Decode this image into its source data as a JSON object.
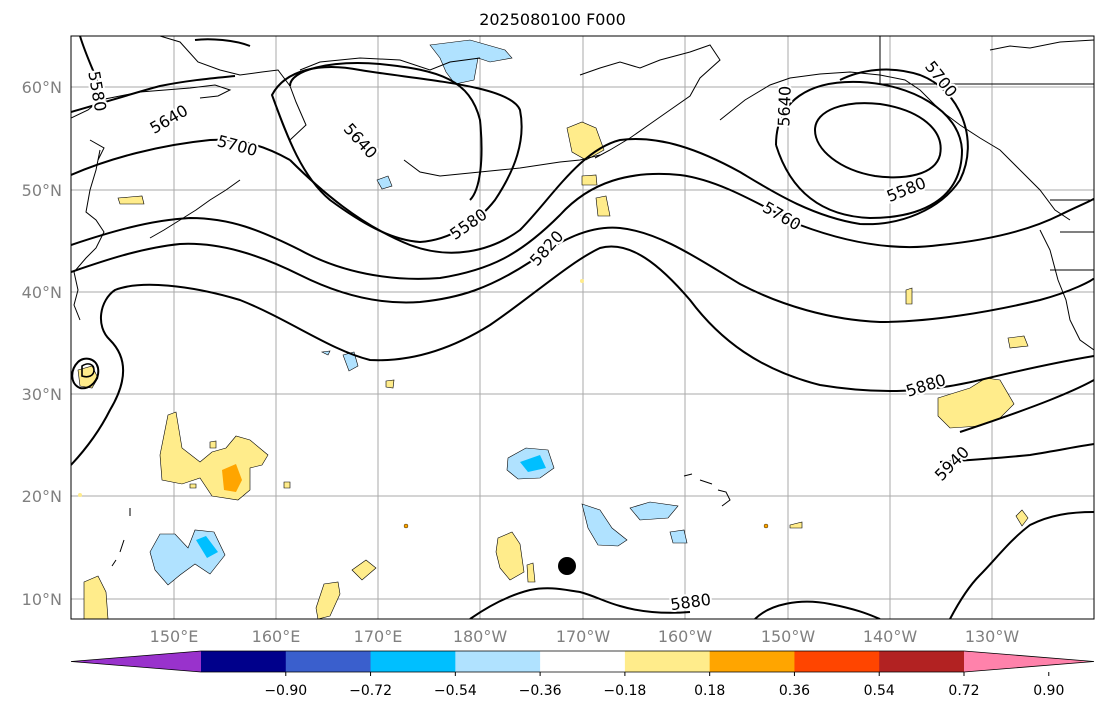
{
  "title": "2025080100 F000",
  "lat_labels": [
    "60°N",
    "50°N",
    "40°N",
    "30°N",
    "20°N",
    "10°N"
  ],
  "lon_labels": [
    "150°E",
    "160°E",
    "170°E",
    "180°W",
    "170°W",
    "160°W",
    "150°W",
    "140°W",
    "130°W"
  ],
  "contour_labels": [
    "5580",
    "5640",
    "5700",
    "5640",
    "5580",
    "5820",
    "5640",
    "5700",
    "5580",
    "5760",
    "5880",
    "5940",
    "5880"
  ],
  "colorbar": {
    "ticks": [
      "−0.90",
      "−0.72",
      "−0.54",
      "−0.36",
      "−0.18",
      "0.18",
      "0.36",
      "0.54",
      "0.72",
      "0.90"
    ],
    "colors": [
      "#9932cc",
      "#00008b",
      "#3a5fcd",
      "#00bfff",
      "#b0e2ff",
      "#ffffff",
      "#ffec8b",
      "#ffa500",
      "#ff4500",
      "#b22222",
      "#ff82ab"
    ]
  },
  "colors": {
    "grid": "#aaaaaa",
    "axis_label": "#808080",
    "positive_fill": "#ffec8b",
    "positive_strong": "#ffa500",
    "negative_fill": "#b0e2ff",
    "negative_strong": "#00bfff"
  },
  "marker": "filled black circle"
}
